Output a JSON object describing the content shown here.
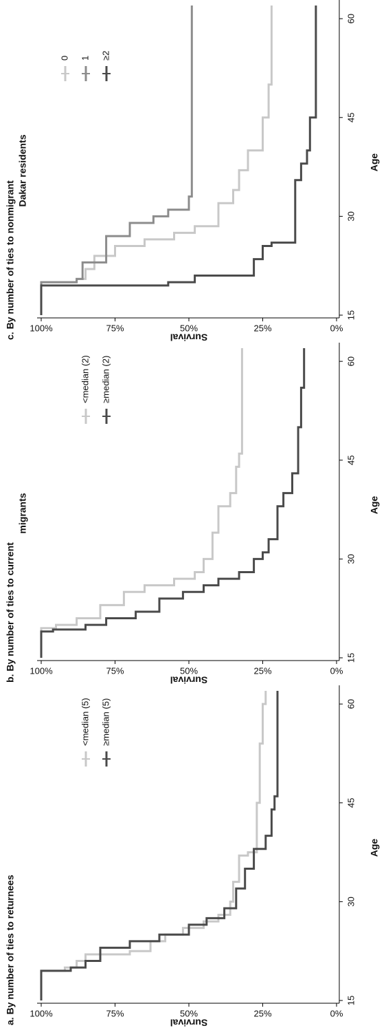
{
  "chart_data": [
    {
      "type": "line",
      "drawstyle": "steps-post",
      "title": [
        "a. By number of ties to returnees"
      ],
      "xlabel": "Age",
      "ylabel": "Survival",
      "xlim": [
        15,
        62
      ],
      "xticks": [
        15,
        30,
        45,
        60
      ],
      "ylim": [
        0,
        100
      ],
      "yticks": [
        {
          "value": 0,
          "label": "0%"
        },
        {
          "value": 25,
          "label": "25%"
        },
        {
          "value": 50,
          "label": "50%"
        },
        {
          "value": 75,
          "label": "75%"
        },
        {
          "value": 100,
          "label": "100%"
        }
      ],
      "series": [
        {
          "name": "<median (5)",
          "color": "#c8c8c8",
          "x": [
            15,
            19.5,
            20,
            21,
            22,
            22.5,
            24,
            25,
            26,
            27,
            28,
            30,
            33,
            37,
            37.5,
            45,
            54,
            60,
            62
          ],
          "values": [
            100,
            92,
            88,
            85,
            70,
            63,
            58,
            52,
            45,
            40,
            36,
            35,
            33,
            30,
            27,
            26,
            25,
            24,
            24
          ]
        },
        {
          "name": "≥median (5)",
          "color": "#4a4a4a",
          "x": [
            15,
            19.5,
            20,
            21,
            23,
            24,
            25,
            26.5,
            27.5,
            29,
            32,
            35,
            38,
            40,
            44,
            46,
            62
          ],
          "values": [
            100,
            90,
            85,
            80,
            70,
            60,
            50,
            44,
            38,
            34,
            31,
            28,
            24,
            22,
            21,
            20,
            20
          ]
        }
      ]
    },
    {
      "type": "line",
      "drawstyle": "steps-post",
      "title": [
        "b. By number of ties to current",
        "migrants"
      ],
      "xlabel": "Age",
      "ylabel": "Survival",
      "xlim": [
        15,
        62
      ],
      "xticks": [
        15,
        30,
        45,
        60
      ],
      "ylim": [
        0,
        100
      ],
      "yticks": [
        {
          "value": 0,
          "label": "0%"
        },
        {
          "value": 25,
          "label": "25%"
        },
        {
          "value": 50,
          "label": "50%"
        },
        {
          "value": 75,
          "label": "75%"
        },
        {
          "value": 100,
          "label": "100%"
        }
      ],
      "series": [
        {
          "name": "<median (2)",
          "color": "#c8c8c8",
          "x": [
            15,
            19.5,
            20,
            21,
            23,
            25,
            26,
            27,
            28,
            30,
            34,
            38,
            40,
            44,
            46,
            55,
            62
          ],
          "values": [
            100,
            95,
            88,
            80,
            72,
            65,
            55,
            48,
            45,
            42,
            40,
            36,
            34,
            33,
            32,
            32,
            32
          ]
        },
        {
          "name": "≥median (2)",
          "color": "#4a4a4a",
          "x": [
            15,
            19,
            19.3,
            20,
            21,
            22,
            24,
            25,
            26,
            27,
            28,
            30,
            31,
            33,
            38,
            40,
            43,
            50,
            56,
            62
          ],
          "values": [
            100,
            96,
            85,
            78,
            68,
            60,
            52,
            45,
            40,
            33,
            28,
            25,
            23,
            20,
            18,
            15,
            13,
            12,
            11,
            11
          ]
        }
      ]
    },
    {
      "type": "line",
      "drawstyle": "steps-post",
      "title": [
        "c. By number of ties to nonmigrant",
        "Dakar residents"
      ],
      "xlabel": "Age",
      "ylabel": "Survival",
      "xlim": [
        15,
        62
      ],
      "xticks": [
        15,
        30,
        45,
        60
      ],
      "ylim": [
        0,
        100
      ],
      "yticks": [
        {
          "value": 0,
          "label": "0%"
        },
        {
          "value": 25,
          "label": "25%"
        },
        {
          "value": 50,
          "label": "50%"
        },
        {
          "value": 75,
          "label": "75%"
        },
        {
          "value": 100,
          "label": "100%"
        }
      ],
      "series": [
        {
          "name": "0",
          "color": "#c8c8c8",
          "x": [
            15,
            20,
            20.5,
            22,
            24,
            25.5,
            26.5,
            27.5,
            28.5,
            32,
            34,
            37,
            40,
            45,
            50,
            62
          ],
          "values": [
            100,
            88,
            85,
            82,
            75,
            65,
            55,
            48,
            40,
            35,
            33,
            30,
            25,
            23,
            22,
            22
          ]
        },
        {
          "name": "1",
          "color": "#8c8c8c",
          "x": [
            15,
            20,
            20.5,
            23,
            27,
            29,
            30,
            31,
            33,
            62
          ],
          "values": [
            100,
            88,
            86,
            78,
            70,
            62,
            57,
            50,
            49,
            49
          ]
        },
        {
          "name": "≥2",
          "color": "#4a4a4a",
          "x": [
            15,
            19.5,
            20,
            21,
            23.5,
            25.5,
            26,
            27.5,
            33,
            35.5,
            38,
            40,
            45,
            62
          ],
          "values": [
            100,
            57,
            48,
            28,
            25,
            22,
            14,
            14,
            14,
            12,
            10,
            9,
            7,
            7
          ]
        }
      ]
    }
  ]
}
